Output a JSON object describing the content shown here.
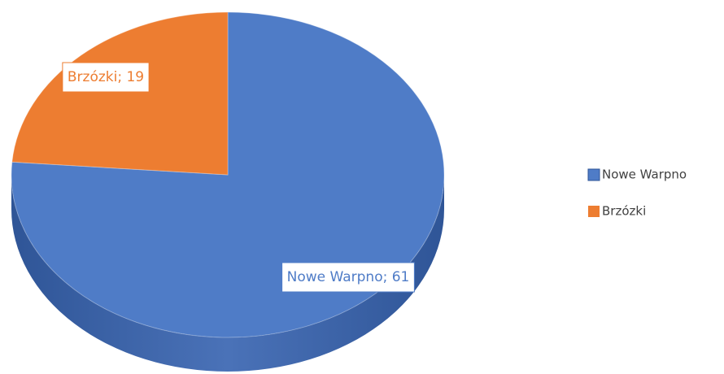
{
  "chart_data": {
    "type": "pie",
    "categories": [
      "Nowe Warpno",
      "Brzózki"
    ],
    "values": [
      61,
      19
    ],
    "value_labels": [
      "Nowe Warpno; 61",
      "Brzózki; 19"
    ],
    "colors": [
      "#4f7cc7",
      "#ed7d31"
    ],
    "legend": "right"
  }
}
